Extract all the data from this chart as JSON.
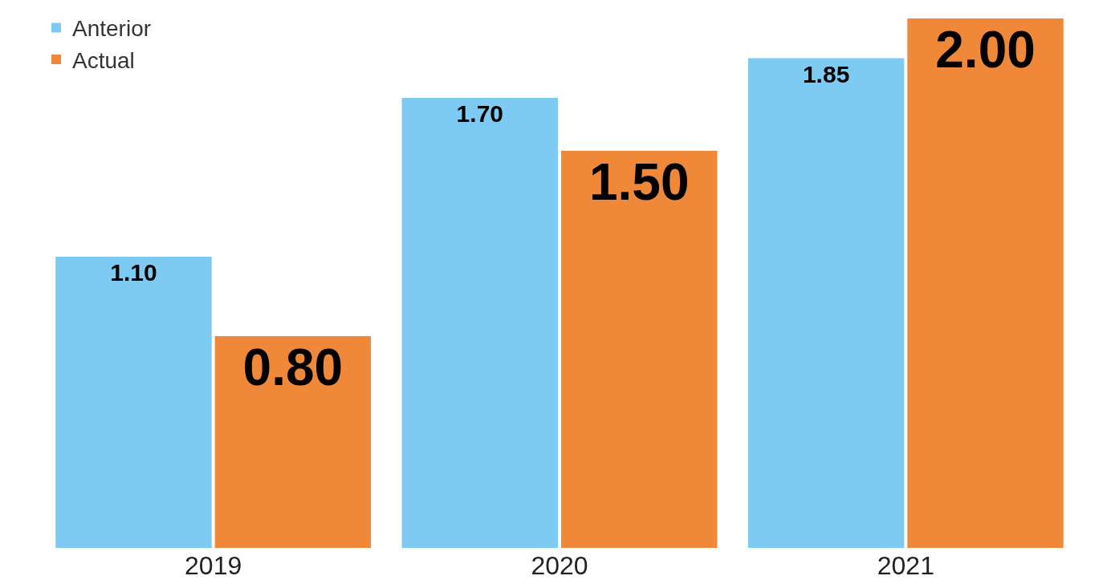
{
  "chart_data": {
    "type": "bar",
    "categories": [
      "2019",
      "2020",
      "2021"
    ],
    "series": [
      {
        "name": "Anterior",
        "color": "#7dcbf3",
        "values": [
          1.1,
          1.7,
          1.85
        ],
        "value_labels": [
          "1.10",
          "1.70",
          "1.85"
        ]
      },
      {
        "name": "Actual",
        "color": "#f0883a",
        "values": [
          0.8,
          1.5,
          2.0
        ],
        "value_labels": [
          "0.80",
          "1.50",
          "2.00"
        ]
      }
    ],
    "ylim": [
      0,
      2.0
    ],
    "legend": "top left",
    "grid": false
  }
}
